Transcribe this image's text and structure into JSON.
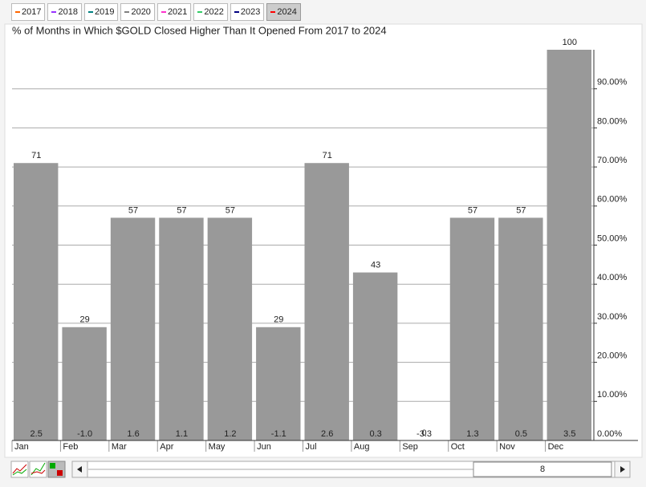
{
  "toolbar": {
    "years": [
      {
        "label": "2017",
        "color": "#ff6600"
      },
      {
        "label": "2018",
        "color": "#9933ff"
      },
      {
        "label": "2019",
        "color": "#008080"
      },
      {
        "label": "2020",
        "color": "#808080"
      },
      {
        "label": "2021",
        "color": "#ff33cc"
      },
      {
        "label": "2022",
        "color": "#33cc66"
      },
      {
        "label": "2023",
        "color": "#000080"
      },
      {
        "label": "2024",
        "color": "#ff0000"
      }
    ],
    "selected": 7
  },
  "chart_data": {
    "type": "bar",
    "title": "% of Months in Which $GOLD Closed Higher Than It Opened From 2017 to 2024",
    "categories": [
      "Jan",
      "Feb",
      "Mar",
      "Apr",
      "May",
      "Jun",
      "Jul",
      "Aug",
      "Sep",
      "Oct",
      "Nov",
      "Dec"
    ],
    "values": [
      71,
      29,
      57,
      57,
      57,
      29,
      71,
      43,
      0,
      57,
      57,
      100
    ],
    "color": "#999999",
    "change": {
      "values": [
        2.5,
        -1.0,
        1.6,
        1.1,
        1.2,
        -1.1,
        2.6,
        0.3,
        -3.3,
        1.3,
        0.5,
        3.5
      ],
      "value_labels": [
        "2.5",
        "-1.0",
        "1.6",
        "1.1",
        "1.2",
        "-1.1",
        "2.6",
        "0.3",
        "-3.3",
        "1.3",
        "0.5",
        "3.5"
      ]
    },
    "ylim": [
      0,
      100
    ],
    "yticks": [
      {
        "value": 0,
        "label": "0.00%"
      },
      {
        "value": 10,
        "label": "10.00%"
      },
      {
        "value": 20,
        "label": "20.00%"
      },
      {
        "value": 30,
        "label": "30.00%"
      },
      {
        "value": 40,
        "label": "40.00%"
      },
      {
        "value": 50,
        "label": "50.00%"
      },
      {
        "value": 60,
        "label": "60.00%"
      },
      {
        "value": 70,
        "label": "70.00%"
      },
      {
        "value": 80,
        "label": "80.00%"
      },
      {
        "value": 90,
        "label": "90.00%"
      }
    ],
    "grid": true
  },
  "scrollbar": {
    "label": "8"
  }
}
